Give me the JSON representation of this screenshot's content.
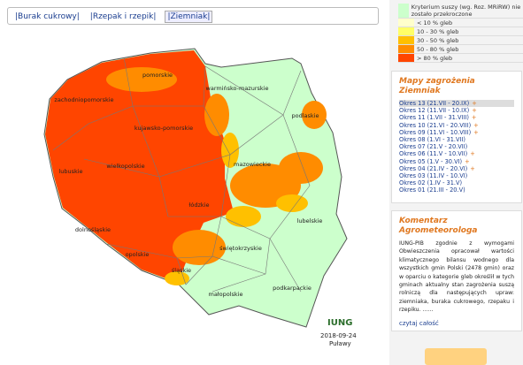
{
  "tabs": [
    "|Burak cukrowy|",
    "|Rzepak i rzepik|",
    "|Ziemniak|"
  ],
  "selected_tab": 2,
  "legend": [
    {
      "label": "Kryterium suszy (wg. Roz. MRiRW) nie zostało przekroczone",
      "color": "#ccffcc"
    },
    {
      "label": "< 10 % gleb",
      "color": "#ffffcc"
    },
    {
      "label": "10 - 30 % gleb",
      "color": "#ffff66"
    },
    {
      "label": "30 - 50 % gleb",
      "color": "#ffc000"
    },
    {
      "label": "50 - 80 % gleb",
      "color": "#ff8c00"
    },
    {
      "label": "> 80 % gleb",
      "color": "#ff4500"
    }
  ],
  "map": {
    "regions": [
      "pomorskie",
      "warmińsko-mazurskie",
      "zachodniopomorskie",
      "kujawsko-pomorskie",
      "podlaskie",
      "lubuskie",
      "wielkopolskie",
      "mazowieckie",
      "łódzkie",
      "lubelskie",
      "dolnośląskie",
      "opolskie",
      "świętokrzyskie",
      "śląskie",
      "podkarpackie",
      "małopolskie"
    ],
    "logo": "IUNG",
    "date": "2018-09-24",
    "place": "Puławy"
  },
  "periods": {
    "title": "Mapy zagrożenia Ziemniak",
    "selected": 0,
    "items": [
      {
        "label": "Okres 13 (21.VII - 20.IX)",
        "mark": "+"
      },
      {
        "label": "Okres 12 (11.VII - 10.IX)",
        "mark": "+"
      },
      {
        "label": "Okres 11 (1.VII - 31.VIII)",
        "mark": "+"
      },
      {
        "label": "Okres 10 (21.VI - 20.VIII)",
        "mark": "+"
      },
      {
        "label": "Okres 09 (11.VI - 10.VIII)",
        "mark": "+"
      },
      {
        "label": "Okres 08 (1.VI - 31.VII)"
      },
      {
        "label": "Okres 07 (21.V - 20.VII)"
      },
      {
        "label": "Okres 06 (11.V - 10.VII)",
        "mark": "+"
      },
      {
        "label": "Okres 05 (1.V - 30.VI)",
        "mark": "+"
      },
      {
        "label": "Okres 04 (21.IV - 20.VI)",
        "mark": "+"
      },
      {
        "label": "Okres 03 (11.IV - 10.VI)"
      },
      {
        "label": "Okres 02 (1.IV - 31.V)"
      },
      {
        "label": "Okres 01 (21.III - 20.V)"
      }
    ]
  },
  "comment": {
    "title": "Komentarz Agrometeorologa",
    "text": "IUNG-PIB zgodnie z wymogami Obwieszczenia opracował wartości klimatycznego bilansu wodnego dla wszystkich gmin Polski (2478 gmin) oraz w oparciu o kategorie gleb określił w tych gminach aktualny stan zagrożenia suszą rolniczą dla następujących upraw: ziemniaka, buraka cukrowego, rzepaku i rzepiku. ......",
    "link": "czytaj całość"
  }
}
